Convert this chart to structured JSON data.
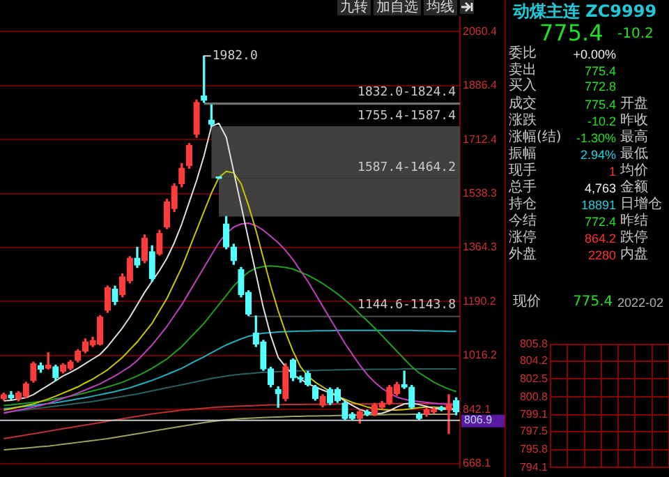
{
  "chart_data": [
    {
      "type": "candlestick",
      "categories": [
        null,
        null,
        null,
        null,
        null,
        null,
        null,
        null,
        null,
        null,
        null,
        null,
        null,
        null,
        null,
        null,
        null,
        null,
        null,
        null,
        null,
        null,
        null,
        null,
        null,
        null,
        null,
        null,
        null,
        null,
        null,
        null,
        null,
        null,
        null,
        null,
        null,
        null,
        null,
        null,
        null,
        null,
        null,
        null,
        null,
        null,
        null,
        null,
        null,
        null,
        null,
        null,
        null,
        null,
        null,
        null,
        null,
        null,
        null,
        null,
        null,
        null
      ],
      "ohlc": [
        [
          878,
          895,
          872,
          890
        ],
        [
          888,
          900,
          875,
          880
        ],
        [
          878,
          900,
          870,
          895
        ],
        [
          885,
          930,
          880,
          925
        ],
        [
          935,
          995,
          930,
          990
        ],
        [
          984,
          992,
          962,
          972
        ],
        [
          975,
          1025,
          972,
          985
        ],
        [
          980,
          985,
          935,
          945
        ],
        [
          965,
          990,
          960,
          985
        ],
        [
          975,
          1000,
          970,
          995
        ],
        [
          1000,
          1035,
          995,
          1030
        ],
        [
          1030,
          1070,
          1025,
          1060
        ],
        [
          1050,
          1075,
          1045,
          1065
        ],
        [
          1053,
          1145,
          1050,
          1140
        ],
        [
          1162,
          1240,
          1155,
          1235
        ],
        [
          1230,
          1240,
          1180,
          1190
        ],
        [
          1213,
          1280,
          1205,
          1270
        ],
        [
          1257,
          1335,
          1250,
          1330
        ],
        [
          1330,
          1365,
          1300,
          1308
        ],
        [
          1322,
          1405,
          1315,
          1395
        ],
        [
          1351,
          1370,
          1255,
          1264
        ],
        [
          1344,
          1420,
          1340,
          1410
        ],
        [
          1431,
          1520,
          1425,
          1511
        ],
        [
          1490,
          1570,
          1480,
          1562
        ],
        [
          1570,
          1635,
          1560,
          1620
        ],
        [
          1628,
          1700,
          1620,
          1693
        ],
        [
          1730,
          1840,
          1720,
          1832
        ],
        [
          1853,
          1982,
          1832,
          1839
        ],
        [
          1775,
          1824.4,
          1755.4,
          1762
        ],
        [
          1587.4,
          1587.4,
          1587.4,
          1587.4
        ],
        [
          1440,
          1464.2,
          1360,
          1366
        ],
        [
          1366,
          1375,
          1310,
          1322
        ],
        [
          1293,
          1300,
          1205,
          1213
        ],
        [
          1220,
          1225,
          1144.6,
          1150
        ],
        [
          1089,
          1143.8,
          1045,
          1053
        ],
        [
          1060,
          1065,
          968,
          973
        ],
        [
          973,
          978,
          915,
          922
        ],
        [
          907,
          915,
          849,
          893
        ],
        [
          878,
          990,
          870,
          980
        ],
        [
          1002,
          1005,
          935,
          944
        ],
        [
          945,
          950,
          930,
          940
        ],
        [
          958,
          965,
          918,
          922
        ],
        [
          914,
          920,
          872,
          878
        ],
        [
          856,
          890,
          850,
          885
        ],
        [
          907,
          912,
          858,
          863
        ],
        [
          907,
          912,
          865,
          871
        ],
        [
          863,
          868,
          808,
          813
        ],
        [
          827,
          832,
          808,
          813
        ],
        [
          813,
          840,
          798,
          835
        ],
        [
          835,
          840,
          822,
          827
        ],
        [
          827,
          862,
          822,
          856
        ],
        [
          849,
          868,
          845,
          863
        ],
        [
          863,
          920,
          858,
          914
        ],
        [
          893,
          930,
          888,
          922
        ],
        [
          922,
          966,
          910,
          914
        ],
        [
          914,
          920,
          845,
          849
        ],
        [
          827,
          832,
          808,
          813
        ],
        [
          827,
          848,
          820,
          842
        ],
        [
          835,
          848,
          830,
          842
        ],
        [
          849,
          852,
          838,
          842
        ],
        [
          842,
          890,
          765,
          856
        ],
        [
          871,
          880,
          825,
          835
        ]
      ],
      "series": [
        {
          "type": "line",
          "color": "#e0e0e0",
          "values": [
            870,
            872,
            876,
            880,
            890,
            905,
            920,
            935,
            950,
            962,
            975,
            990,
            1005,
            1020,
            1045,
            1075,
            1105,
            1140,
            1180,
            1220,
            1255,
            1290,
            1330,
            1380,
            1440,
            1510,
            1580,
            1660,
            1755,
            1765,
            1720,
            1610,
            1500,
            1390,
            1280,
            1170,
            1080,
            1010,
            980,
            955,
            940,
            925,
            915,
            905,
            895,
            885,
            870,
            855,
            842,
            835,
            828,
            830,
            838,
            850,
            860,
            862,
            858,
            852,
            845,
            845,
            842,
            842
          ]
        },
        {
          "type": "line",
          "color": "#c8c800",
          "values": [
            840,
            845,
            850,
            855,
            860,
            868,
            876,
            885,
            895,
            905,
            915,
            928,
            940,
            955,
            970,
            990,
            1010,
            1035,
            1060,
            1090,
            1120,
            1160,
            1200,
            1250,
            1300,
            1360,
            1420,
            1480,
            1540,
            1590,
            1610,
            1605,
            1570,
            1500,
            1420,
            1330,
            1240,
            1160,
            1090,
            1030,
            980,
            950,
            930,
            915,
            900,
            885,
            875,
            865,
            858,
            850,
            845,
            842,
            840,
            840,
            842,
            845,
            848,
            850,
            850,
            848,
            846,
            845
          ]
        },
        {
          "type": "line",
          "color": "#c040c0",
          "values": [
            830,
            835,
            840,
            845,
            850,
            855,
            862,
            870,
            878,
            886,
            895,
            905,
            915,
            925,
            938,
            950,
            965,
            980,
            1000,
            1025,
            1050,
            1080,
            1110,
            1145,
            1180,
            1220,
            1260,
            1300,
            1340,
            1380,
            1410,
            1430,
            1440,
            1443,
            1435,
            1420,
            1400,
            1380,
            1355,
            1325,
            1290,
            1255,
            1215,
            1175,
            1135,
            1095,
            1055,
            1020,
            985,
            955,
            930,
            910,
            895,
            882,
            875,
            870,
            868,
            865,
            862,
            860,
            858,
            855
          ]
        },
        {
          "type": "line",
          "color": "#20a020",
          "values": [
            855,
            857,
            860,
            862,
            865,
            868,
            872,
            876,
            880,
            885,
            890,
            896,
            902,
            908,
            915,
            922,
            930,
            940,
            950,
            962,
            975,
            990,
            1005,
            1025,
            1045,
            1070,
            1095,
            1120,
            1150,
            1180,
            1210,
            1240,
            1265,
            1285,
            1298,
            1303,
            1305,
            1303,
            1300,
            1295,
            1285,
            1275,
            1262,
            1248,
            1232,
            1215,
            1195,
            1175,
            1150,
            1128,
            1105,
            1080,
            1055,
            1030,
            1005,
            980,
            960,
            945,
            930,
            918,
            908,
            900
          ]
        },
        {
          "type": "line",
          "color": "#20b0c0",
          "values": [
            845,
            847,
            850,
            852,
            855,
            858,
            861,
            864,
            868,
            872,
            876,
            880,
            885,
            890,
            895,
            900,
            906,
            912,
            920,
            928,
            936,
            945,
            955,
            965,
            975,
            988,
            1000,
            1012,
            1025,
            1038,
            1050,
            1060,
            1070,
            1078,
            1084,
            1088,
            1090,
            1092,
            1093,
            1094,
            1095,
            1095,
            1096,
            1096,
            1096,
            1097,
            1097,
            1097,
            1097,
            1097,
            1097,
            1097,
            1097,
            1097,
            1097,
            1097,
            1096,
            1096,
            1095,
            1095,
            1094,
            1094
          ]
        },
        {
          "type": "line",
          "color": "#2a6060",
          "values": [
            832,
            835,
            838,
            841,
            844,
            847,
            850,
            853,
            856,
            859,
            862,
            865,
            868,
            872,
            876,
            880,
            884,
            888,
            892,
            897,
            902,
            907,
            912,
            917,
            922,
            927,
            932,
            937,
            942,
            946,
            950,
            953,
            956,
            958,
            960,
            962,
            963,
            964,
            965,
            966,
            967,
            968,
            968,
            969,
            969,
            970,
            970,
            971,
            971,
            971,
            972,
            972,
            972,
            972,
            973,
            973,
            973,
            973,
            973,
            973,
            973,
            973
          ]
        },
        {
          "type": "line",
          "color": "#c03030",
          "values": [
            748,
            752,
            756,
            760,
            764,
            768,
            772,
            776,
            780,
            784,
            788,
            792,
            796,
            800,
            804,
            808,
            812,
            816,
            820,
            824,
            828,
            831,
            834,
            837,
            840,
            842,
            844,
            846,
            848,
            850,
            851,
            852,
            853,
            854,
            855,
            856,
            857,
            857,
            858,
            858,
            858,
            859,
            859,
            859,
            859,
            860,
            860,
            860,
            860,
            860,
            860,
            860,
            861,
            861,
            861,
            861,
            861,
            861,
            861,
            861,
            861,
            861
          ]
        },
        {
          "type": "line",
          "color": "#a0a060",
          "values": [
            712,
            714,
            716,
            718,
            720,
            722,
            724,
            727,
            730,
            733,
            736,
            739,
            742,
            745,
            748,
            752,
            756,
            760,
            764,
            768,
            772,
            776,
            780,
            784,
            788,
            792,
            796,
            800,
            803,
            806,
            809,
            811,
            813,
            814,
            815,
            816,
            817,
            818,
            819,
            820,
            820,
            821,
            821,
            822,
            822,
            823,
            823,
            824,
            824,
            825,
            825,
            825,
            826,
            826,
            826,
            827,
            827,
            827,
            827,
            827,
            827,
            827
          ]
        }
      ],
      "ylim": [
        655,
        2108.4
      ],
      "yticks": [
        668.1,
        842.1,
        1016.2,
        1190.2,
        1364.3,
        1538.3,
        1712.4,
        1886.4,
        2060.4
      ],
      "grid": "y",
      "tick_labels": "y",
      "bands": [
        {
          "axis": "y",
          "from": 1824.4,
          "to": 1832.0,
          "label": "1832.0-1824.4",
          "color": "#707070"
        },
        {
          "axis": "y",
          "from": 1587.4,
          "to": 1755.4,
          "label": "1755.4-1587.4",
          "color": "#404040"
        },
        {
          "axis": "y",
          "from": 1464.2,
          "to": 1587.4,
          "label": "1587.4-1464.2",
          "color": "#404040"
        },
        {
          "axis": "y",
          "from": 1143.8,
          "to": 1144.6,
          "label": "1144.6-1143.8",
          "color": "#505050"
        }
      ],
      "ref_lines": [
        {
          "axis": "y",
          "value": 806.9,
          "label": "806.9",
          "color": "#c8c8c8"
        }
      ],
      "annotations": [
        "1982.0",
        "九转",
        "加自选",
        "均线"
      ]
    },
    {
      "type": "other",
      "title": "动煤主连 ZC9999",
      "annotations": [
        "775.4",
        "-10.2",
        "委比",
        "+0.00%",
        "卖出",
        "775.4",
        "买入",
        "772.8",
        "成交",
        "775.4",
        "开盘",
        "涨跌",
        "-10.2",
        "昨收",
        "涨幅(结)",
        "-1.30%",
        "最高",
        "振幅",
        "2.94%",
        "最低",
        "现手",
        "1",
        "均价",
        "总手",
        "4,763",
        "金额",
        "持仓",
        "18891",
        "日增仓",
        "今结",
        "772.4",
        "昨结",
        "涨停",
        "864.2",
        "跌停",
        "外盘",
        "2280",
        "内盘",
        "现价",
        "775.4",
        "2022-02"
      ]
    },
    {
      "type": "line",
      "categories": [
        null,
        null,
        null,
        null,
        null,
        null,
        null,
        null
      ],
      "values": [
        null,
        null,
        null,
        null,
        null,
        null,
        null,
        null
      ],
      "ylim": [
        794.1,
        805.8
      ],
      "yticks": [
        794.1,
        795.8,
        797.5,
        799.1,
        800.8,
        802.5,
        804.2,
        805.8
      ],
      "grid": true,
      "tick_labels": "y"
    }
  ]
}
